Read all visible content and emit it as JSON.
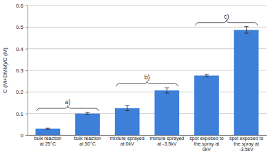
{
  "chart_data": {
    "type": "bar",
    "ylabel": "C (M+DMM)/C (M)",
    "categories": [
      "bulk reaction at 25°C",
      "bulk reaction at 50°C",
      "mixture sprayed at 0kV",
      "mixture sprayed at -3.5kV",
      "spot exposed to the spray at 0kV",
      "spot exposed to the spray at -3.5kV"
    ],
    "values": [
      0.03,
      0.1,
      0.125,
      0.207,
      0.276,
      0.487
    ],
    "errors": [
      0.002,
      0.005,
      0.012,
      0.012,
      0.005,
      0.015
    ],
    "color": "#3d7fd9",
    "ylim": [
      0,
      0.6
    ],
    "yticks": [
      0,
      0.1,
      0.2,
      0.3,
      0.4,
      0.5,
      0.6
    ],
    "grid": true,
    "annotations": [
      "a)",
      "b)",
      "c)"
    ]
  }
}
